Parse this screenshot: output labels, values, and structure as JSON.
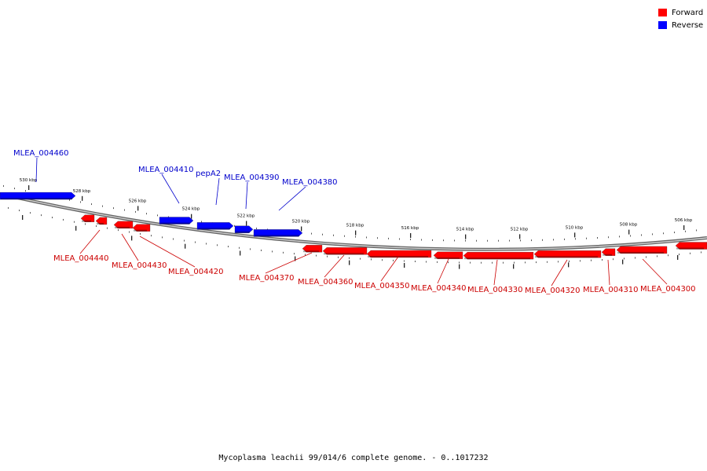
{
  "caption": "Mycoplasma leachii 99/014/6 complete genome. - 0..1017232",
  "legend": [
    {
      "label": "Forward",
      "color": "#ff0000"
    },
    {
      "label": "Reverse",
      "color": "#0000ff"
    }
  ],
  "colors": {
    "forward": "#ff0000",
    "reverse": "#0000ff",
    "backbone": "#888888",
    "label_forward": "#cc0000",
    "label_reverse": "#0000cc"
  },
  "ruler": [
    "530 kbp",
    "528 kbp",
    "526 kbp",
    "524 kbp",
    "522 kbp",
    "520 kbp",
    "518 kbp",
    "516 kbp",
    "514 kbp",
    "512 kbp",
    "510 kbp",
    "508 kbp",
    "506 kbp"
  ],
  "reverse_genes": [
    "MLEA_004460",
    "MLEA_004410",
    "pepA2",
    "MLEA_004390",
    "MLEA_004380"
  ],
  "forward_genes": [
    "MLEA_004440",
    "MLEA_004430",
    "MLEA_004420",
    "MLEA_004370",
    "MLEA_004360",
    "MLEA_004350",
    "MLEA_004340",
    "MLEA_004330",
    "MLEA_004320",
    "MLEA_004310",
    "MLEA_004300"
  ]
}
